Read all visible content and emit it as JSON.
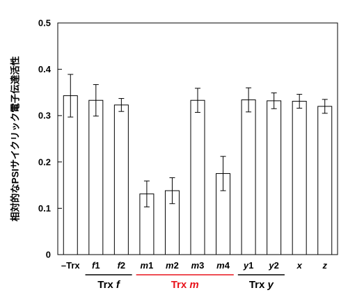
{
  "chart_data": {
    "type": "bar",
    "ylabel": "相対的なPSIサイクリック電子伝達活性",
    "xlabel": "",
    "ylim": [
      0,
      0.5
    ],
    "yticks": [
      "0",
      "0.1",
      "0.2",
      "0.3",
      "0.4",
      "0.5"
    ],
    "categories": [
      {
        "prefix": "–Trx",
        "italic": "",
        "suffix": "",
        "color": "#000000"
      },
      {
        "prefix": "",
        "italic": "f",
        "suffix": "1",
        "color": "#000000"
      },
      {
        "prefix": "",
        "italic": "f",
        "suffix": "2",
        "color": "#000000"
      },
      {
        "prefix": "",
        "italic": "m",
        "suffix": "1",
        "color": "#e8141c"
      },
      {
        "prefix": "",
        "italic": "m",
        "suffix": "2",
        "color": "#e8141c"
      },
      {
        "prefix": "",
        "italic": "m",
        "suffix": "3",
        "color": "#000000"
      },
      {
        "prefix": "",
        "italic": "m",
        "suffix": "4",
        "color": "#e8141c"
      },
      {
        "prefix": "",
        "italic": "y",
        "suffix": "1",
        "color": "#000000"
      },
      {
        "prefix": "",
        "italic": "y",
        "suffix": "2",
        "color": "#000000"
      },
      {
        "prefix": "",
        "italic": "x",
        "suffix": "",
        "color": "#000000"
      },
      {
        "prefix": "",
        "italic": "z",
        "suffix": "",
        "color": "#000000"
      }
    ],
    "values": [
      0.343,
      0.333,
      0.323,
      0.131,
      0.138,
      0.333,
      0.175,
      0.334,
      0.332,
      0.331,
      0.32
    ],
    "errors": [
      0.046,
      0.034,
      0.014,
      0.028,
      0.028,
      0.026,
      0.037,
      0.026,
      0.017,
      0.015,
      0.015
    ],
    "groups": [
      {
        "label_prefix": "Trx ",
        "label_italic": "f",
        "start_index": 1,
        "end_index": 2,
        "color": "#000000"
      },
      {
        "label_prefix": "Trx ",
        "label_italic": "m",
        "start_index": 3,
        "end_index": 6,
        "color": "#e8141c"
      },
      {
        "label_prefix": "Trx ",
        "label_italic": "y",
        "start_index": 7,
        "end_index": 8,
        "color": "#000000"
      }
    ],
    "bar_fill": "#ffffff",
    "bar_stroke": "#000000",
    "grid": false,
    "legend": "none"
  }
}
